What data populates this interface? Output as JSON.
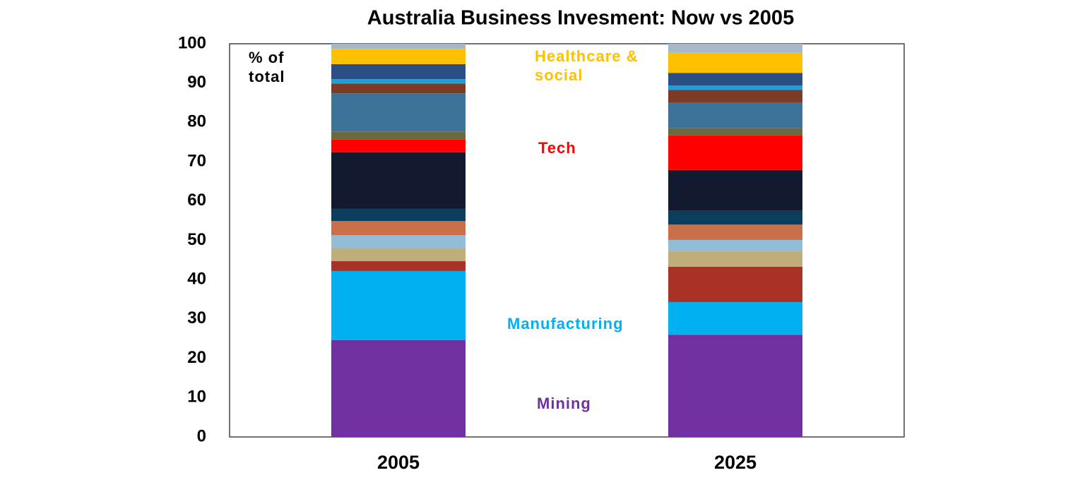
{
  "chart_data": {
    "type": "stacked_bar",
    "title": "Australia Business Invesment: Now vs 2005",
    "ylabel": "% of total",
    "categories": [
      "2005",
      "2025"
    ],
    "ylim": [
      0,
      100
    ],
    "yticks": [
      0,
      10,
      20,
      30,
      40,
      50,
      60,
      70,
      80,
      90,
      100
    ],
    "series": [
      {
        "name": "Mining",
        "color": "#7030a0",
        "values": [
          24.6,
          26.0
        ]
      },
      {
        "name": "Manufacturing",
        "color": "#00b0f0",
        "values": [
          17.6,
          8.3
        ]
      },
      {
        "color": "#a93226",
        "values": [
          2.5,
          9.0
        ]
      },
      {
        "color": "#bfae7a",
        "values": [
          3.4,
          3.9
        ]
      },
      {
        "color": "#93bcd6",
        "values": [
          3.2,
          2.9
        ]
      },
      {
        "color": "#c9704a",
        "values": [
          3.6,
          3.9
        ]
      },
      {
        "color": "#0b3d5c",
        "values": [
          3.1,
          3.5
        ]
      },
      {
        "color": "#111a2e",
        "values": [
          14.4,
          10.4
        ]
      },
      {
        "name": "Tech",
        "color": "#ff0000",
        "values": [
          3.2,
          8.8
        ]
      },
      {
        "color": "#6b6a3e",
        "values": [
          2.1,
          1.9
        ]
      },
      {
        "color": "#3d7399",
        "values": [
          9.7,
          6.5
        ]
      },
      {
        "color": "#7b3b24",
        "values": [
          2.5,
          3.2
        ]
      },
      {
        "color": "#1e9fdc",
        "values": [
          1.1,
          1.1
        ]
      },
      {
        "color": "#2b4f84",
        "values": [
          3.8,
          3.2
        ]
      },
      {
        "name": "Healthcare & social",
        "color": "#ffc000",
        "values": [
          3.9,
          5.1
        ]
      },
      {
        "color": "#a6b8c8",
        "values": [
          1.3,
          2.3
        ]
      }
    ]
  }
}
